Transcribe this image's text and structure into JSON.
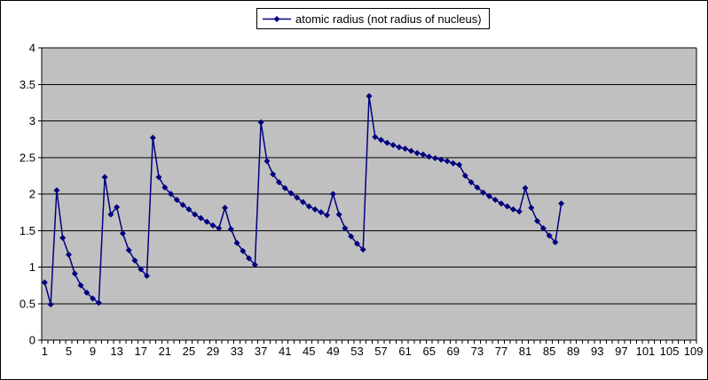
{
  "chart": {
    "legend_label": "atomic radius (not radius of nucleus)",
    "colors": {
      "series": "#000080",
      "plot_bg": "#c0c0c0",
      "grid": "#000000",
      "axis": "#000000",
      "chart_bg": "#ffffff",
      "text": "#000000"
    }
  },
  "chart_data": {
    "type": "line",
    "title": "",
    "legend": [
      "atomic radius (not radius of nucleus)"
    ],
    "marker": "diamond",
    "grid": "horizontal",
    "legend_position": "top-center",
    "x_axis": {
      "categories_total": 109,
      "tick_labels": [
        "1",
        "5",
        "9",
        "13",
        "17",
        "21",
        "25",
        "29",
        "33",
        "37",
        "41",
        "45",
        "49",
        "53",
        "57",
        "61",
        "65",
        "69",
        "73",
        "77",
        "81",
        "85",
        "89",
        "93",
        "97",
        "101",
        "105",
        "109"
      ],
      "label_interval": 4
    },
    "y_axis": {
      "min": 0,
      "max": 4,
      "step": 0.5,
      "tick_labels": [
        "0",
        "0.5",
        "1",
        "1.5",
        "2",
        "2.5",
        "3",
        "3.5",
        "4"
      ]
    },
    "series": [
      {
        "name": "atomic radius (not radius of nucleus)",
        "x_start": 1,
        "values": [
          0.79,
          0.49,
          2.05,
          1.4,
          1.17,
          0.91,
          0.75,
          0.65,
          0.57,
          0.51,
          2.23,
          1.72,
          1.82,
          1.46,
          1.23,
          1.09,
          0.97,
          0.88,
          2.77,
          2.23,
          2.09,
          2.0,
          1.92,
          1.85,
          1.79,
          1.72,
          1.67,
          1.62,
          1.57,
          1.53,
          1.81,
          1.52,
          1.33,
          1.22,
          1.12,
          1.03,
          2.98,
          2.45,
          2.27,
          2.16,
          2.08,
          2.01,
          1.95,
          1.89,
          1.83,
          1.79,
          1.75,
          1.71,
          2.0,
          1.72,
          1.53,
          1.42,
          1.32,
          1.24,
          3.34,
          2.78,
          2.74,
          2.7,
          2.67,
          2.64,
          2.62,
          2.59,
          2.56,
          2.54,
          2.51,
          2.49,
          2.47,
          2.45,
          2.42,
          2.4,
          2.25,
          2.16,
          2.09,
          2.02,
          1.97,
          1.92,
          1.87,
          1.83,
          1.79,
          1.76,
          2.08,
          1.81,
          1.63,
          1.53,
          1.43,
          1.34,
          1.87
        ]
      }
    ]
  }
}
